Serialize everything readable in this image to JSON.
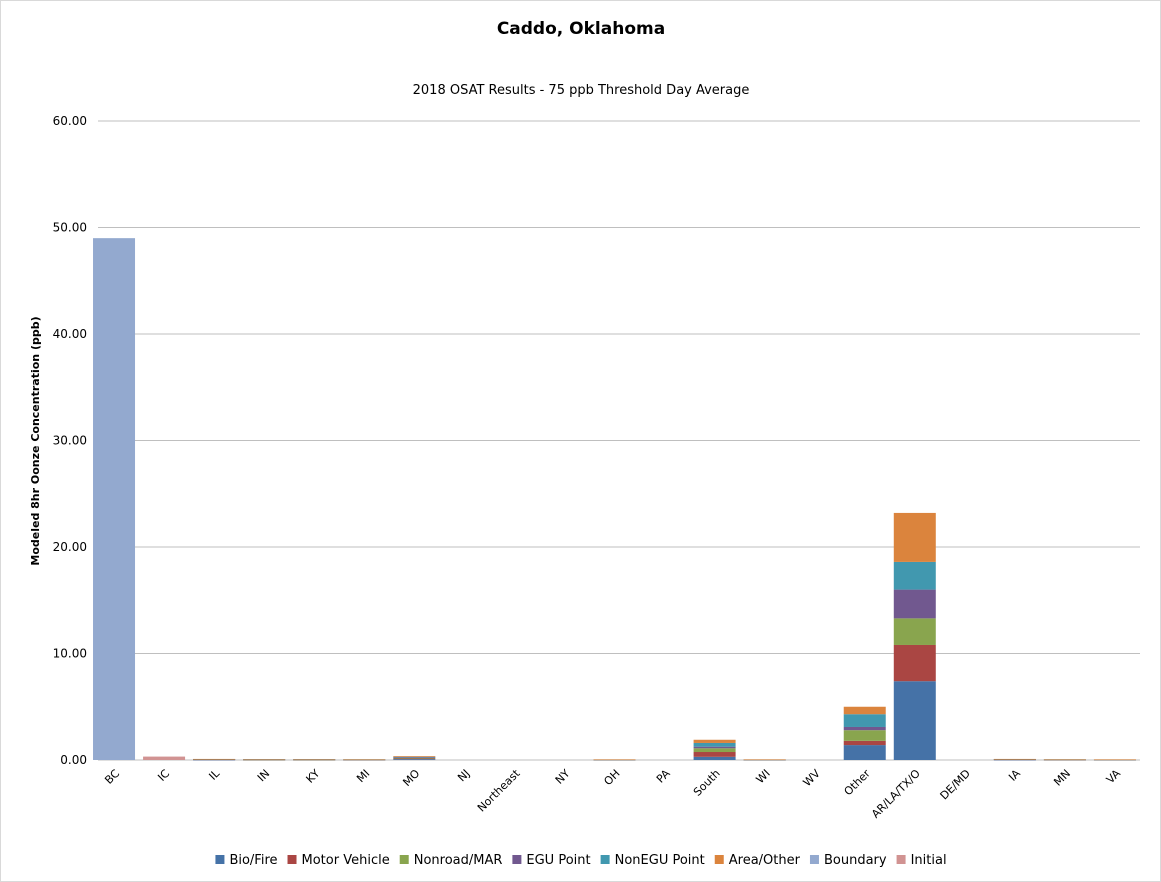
{
  "chart_data": {
    "type": "bar",
    "stacked": true,
    "title": "Caddo, Oklahoma",
    "subtitle": "2018 OSAT Results - 75 ppb Threshold Day Average",
    "ylabel": "Modeled 8hr Oonze Concentration (ppb)",
    "xlabel": "",
    "ylim": [
      0,
      60
    ],
    "yticks": [
      "0.00",
      "10.00",
      "20.00",
      "30.00",
      "40.00",
      "50.00",
      "60.00"
    ],
    "ytick_values": [
      0,
      10,
      20,
      30,
      40,
      50,
      60
    ],
    "grid": true,
    "legend_position": "bottom",
    "categories": [
      "BC",
      "IC",
      "IL",
      "IN",
      "KY",
      "MI",
      "MO",
      "NJ",
      "Northeast",
      "NY",
      "OH",
      "PA",
      "South",
      "WI",
      "WV",
      "Other",
      "AR/LA/TX/O",
      "DE/MD",
      "IA",
      "MN",
      "VA"
    ],
    "series": [
      {
        "name": "Bio/Fire",
        "color": "#4572a7",
        "values": [
          0,
          0,
          0.02,
          0.01,
          0.01,
          0.01,
          0.08,
          0,
          0,
          0,
          0.01,
          0,
          0.3,
          0.01,
          0,
          1.4,
          7.4,
          0,
          0.02,
          0.01,
          0.01
        ]
      },
      {
        "name": "Motor Vehicle",
        "color": "#aa4643",
        "values": [
          0,
          0,
          0.03,
          0.02,
          0.02,
          0.02,
          0.07,
          0,
          0,
          0,
          0.01,
          0,
          0.45,
          0.01,
          0,
          0.4,
          3.4,
          0,
          0.03,
          0.02,
          0.01
        ]
      },
      {
        "name": "Nonroad/MAR",
        "color": "#89a54e",
        "values": [
          0,
          0,
          0.02,
          0.01,
          0.01,
          0.01,
          0.05,
          0,
          0,
          0,
          0.01,
          0,
          0.35,
          0.01,
          0,
          1.0,
          2.5,
          0,
          0.02,
          0.01,
          0.01
        ]
      },
      {
        "name": "EGU Point",
        "color": "#71588f",
        "values": [
          0,
          0,
          0.01,
          0.02,
          0.02,
          0.01,
          0.05,
          0,
          0,
          0,
          0.01,
          0,
          0.15,
          0.01,
          0,
          0.3,
          2.7,
          0,
          0.01,
          0.01,
          0.01
        ]
      },
      {
        "name": "NonEGU Point",
        "color": "#4198af",
        "values": [
          0,
          0,
          0.01,
          0.01,
          0.01,
          0.01,
          0.05,
          0,
          0,
          0,
          0.01,
          0,
          0.35,
          0.01,
          0,
          1.2,
          2.6,
          0,
          0.01,
          0.01,
          0.01
        ]
      },
      {
        "name": "Area/Other",
        "color": "#db843d",
        "values": [
          0,
          0,
          0.01,
          0.01,
          0.01,
          0.01,
          0.07,
          0,
          0,
          0,
          0.01,
          0,
          0.3,
          0.01,
          0,
          0.7,
          4.6,
          0,
          0.01,
          0.01,
          0.01
        ]
      },
      {
        "name": "Boundary",
        "color": "#93a9cf",
        "values": [
          49.0,
          0,
          0,
          0,
          0,
          0,
          0,
          0,
          0,
          0,
          0,
          0,
          0,
          0,
          0,
          0,
          0,
          0,
          0,
          0,
          0
        ]
      },
      {
        "name": "Initial",
        "color": "#d19392",
        "values": [
          0,
          0.32,
          0,
          0,
          0,
          0,
          0,
          0,
          0,
          0,
          0,
          0,
          0,
          0,
          0,
          0,
          0,
          0,
          0,
          0,
          0
        ]
      }
    ]
  }
}
